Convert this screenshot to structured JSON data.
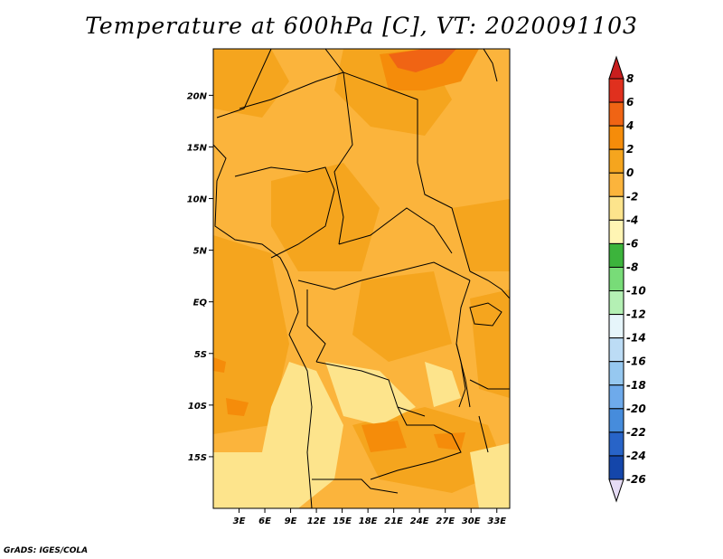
{
  "title": "Temperature at 600hPa [C], VT: 2020091103",
  "credit": "GrADS: IGES/COLA",
  "map": {
    "lat_ticks": [
      {
        "label": "20N",
        "lat": 20
      },
      {
        "label": "15N",
        "lat": 15
      },
      {
        "label": "10N",
        "lat": 10
      },
      {
        "label": "5N",
        "lat": 5
      },
      {
        "label": "EQ",
        "lat": 0
      },
      {
        "label": "5S",
        "lat": -5
      },
      {
        "label": "10S",
        "lat": -10
      },
      {
        "label": "15S",
        "lat": -15
      }
    ],
    "lon_ticks": [
      {
        "label": "3E",
        "lon": 3
      },
      {
        "label": "6E",
        "lon": 6
      },
      {
        "label": "9E",
        "lon": 9
      },
      {
        "label": "12E",
        "lon": 12
      },
      {
        "label": "15E",
        "lon": 15
      },
      {
        "label": "18E",
        "lon": 18
      },
      {
        "label": "21E",
        "lon": 21
      },
      {
        "label": "24E",
        "lon": 24
      },
      {
        "label": "27E",
        "lon": 27
      },
      {
        "label": "30E",
        "lon": 30
      },
      {
        "label": "33E",
        "lon": 33
      }
    ],
    "lon_range": [
      0,
      34.5
    ],
    "lat_range": [
      -20,
      24.5
    ]
  },
  "colorbar": {
    "levels": [
      "8",
      "6",
      "4",
      "2",
      "0",
      "-2",
      "-4",
      "-6",
      "-8",
      "-10",
      "-12",
      "-14",
      "-16",
      "-18",
      "-20",
      "-22",
      "-24",
      "-26"
    ],
    "colors": [
      "#e0301e",
      "#f06414",
      "#f58c0a",
      "#f5a51e",
      "#fbb43c",
      "#fde48c",
      "#fff5b4",
      "#3cb43c",
      "#78dc78",
      "#b4f0b4",
      "#e6f5fa",
      "#bcdcf5",
      "#96c8f0",
      "#6eaaeb",
      "#468cdc",
      "#2864c8",
      "#1446aa",
      "#0a1e78",
      "#e6dcf5"
    ],
    "top_arrow_color": "#c81e1e",
    "bottom_arrow_color": "#e6dcf5"
  },
  "field_colors": {
    "base": "#fbb43c",
    "warm": "#f5a51e",
    "hot": "#f58c0a",
    "hotter": "#f06414",
    "cool": "#fde48c"
  }
}
